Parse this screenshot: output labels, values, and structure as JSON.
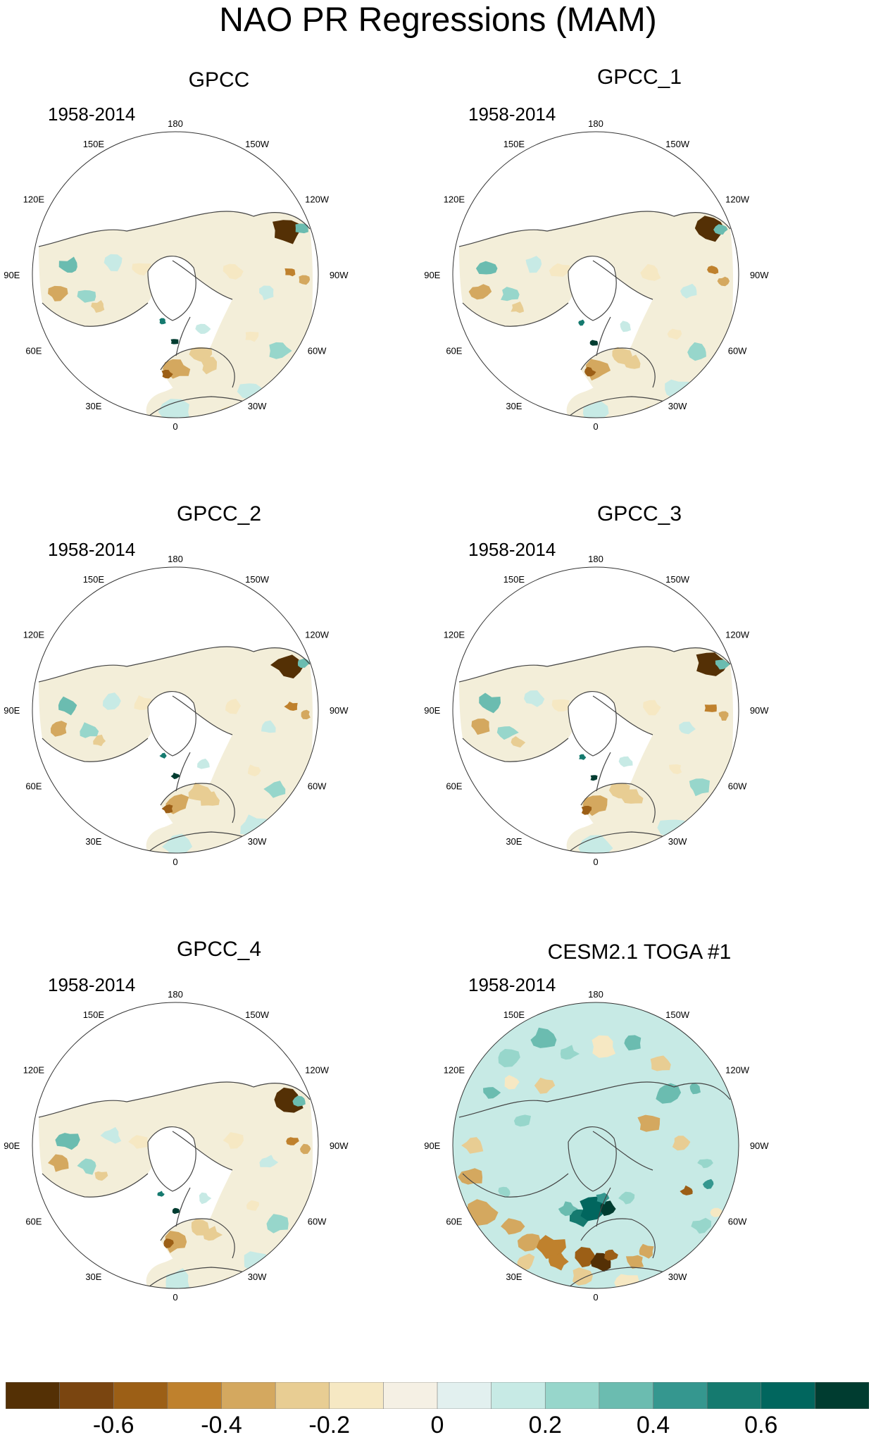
{
  "title": "NAO PR Regressions (MAM)",
  "chart_data": {
    "type": "heatmap",
    "projection": "north polar stereographic",
    "longitude_labels": [
      "180",
      "150E",
      "120E",
      "90E",
      "60E",
      "30E",
      "0",
      "30W",
      "60W",
      "90W",
      "120W",
      "150W"
    ],
    "panels": [
      {
        "title": "GPCC",
        "period": "1958-2014",
        "field": "observed land precipitation regression"
      },
      {
        "title": "GPCC_1",
        "period": "1958-2014",
        "field": "observed land precipitation regression"
      },
      {
        "title": "GPCC_2",
        "period": "1958-2014",
        "field": "observed land precipitation regression"
      },
      {
        "title": "GPCC_3",
        "period": "1958-2014",
        "field": "observed land precipitation regression"
      },
      {
        "title": "GPCC_4",
        "period": "1958-2014",
        "field": "observed land precipitation regression"
      },
      {
        "title": "CESM2.1 TOGA #1",
        "period": "1958-2014",
        "field": "model precipitation regression (global)"
      }
    ],
    "colorbar": {
      "levels": [
        -0.7,
        -0.6,
        -0.5,
        -0.4,
        -0.3,
        -0.2,
        -0.1,
        0,
        0.1,
        0.2,
        0.3,
        0.4,
        0.5,
        0.6,
        0.7
      ],
      "colors": [
        "#543005",
        "#7a4510",
        "#9c5f16",
        "#bf812d",
        "#d4a85f",
        "#e8cd93",
        "#f6e8c3",
        "#f5f0e4",
        "#e2f0ef",
        "#c7eae5",
        "#97d6cb",
        "#6bbcb0",
        "#35978f",
        "#157a6f",
        "#01665e",
        "#003c30"
      ],
      "tick_labels": [
        "-0.6",
        "-0.4",
        "-0.2",
        "0",
        "0.2",
        "0.4",
        "0.6"
      ],
      "tick_values": [
        -0.6,
        -0.4,
        -0.2,
        0,
        0.2,
        0.4,
        0.6
      ]
    }
  }
}
